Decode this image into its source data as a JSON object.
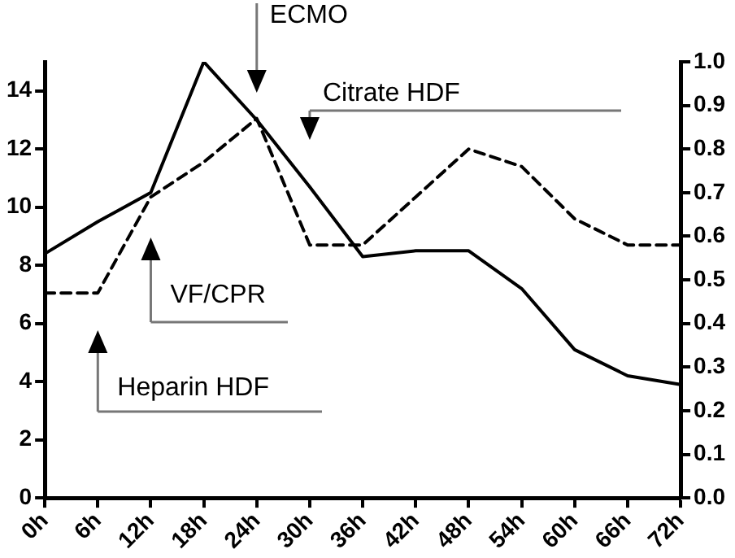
{
  "chart_data": {
    "type": "line",
    "categories": [
      "0h",
      "6h",
      "12h",
      "18h",
      "24h",
      "30h",
      "36h",
      "42h",
      "48h",
      "54h",
      "60h",
      "66h",
      "72h"
    ],
    "series": [
      {
        "color": "#000000",
        "line_style": "solid",
        "values": [
          8.4,
          9.5,
          10.5,
          15,
          13,
          10.7,
          8.3,
          8.5,
          8.5,
          7.2,
          5.1,
          4.2,
          3.9
        ]
      },
      {
        "color": "#000000",
        "line_style": "dashed",
        "axis": "y2",
        "values": [
          0.47,
          0.47,
          0.69,
          0.77,
          0.87,
          0.58,
          0.58,
          0.69,
          0.8,
          0.76,
          0.64,
          0.58,
          0.58
        ]
      }
    ],
    "ylim": [
      0,
      15
    ],
    "yticks": [
      0,
      2,
      4,
      6,
      8,
      10,
      12,
      14
    ],
    "y2lim": [
      0,
      1
    ],
    "y2ticks": [
      {
        "value": 0,
        "label": "0.0"
      },
      0.1,
      0.2,
      0.3,
      0.4,
      0.5,
      0.6,
      0.7,
      0.8,
      0.9,
      {
        "value": 1,
        "label": "1.0"
      }
    ],
    "grid": false,
    "legend": false,
    "marker": "none",
    "annotations": [
      "ECMO",
      "Citrate HDF",
      "VF/CPR",
      "Heparin HDF"
    ]
  }
}
